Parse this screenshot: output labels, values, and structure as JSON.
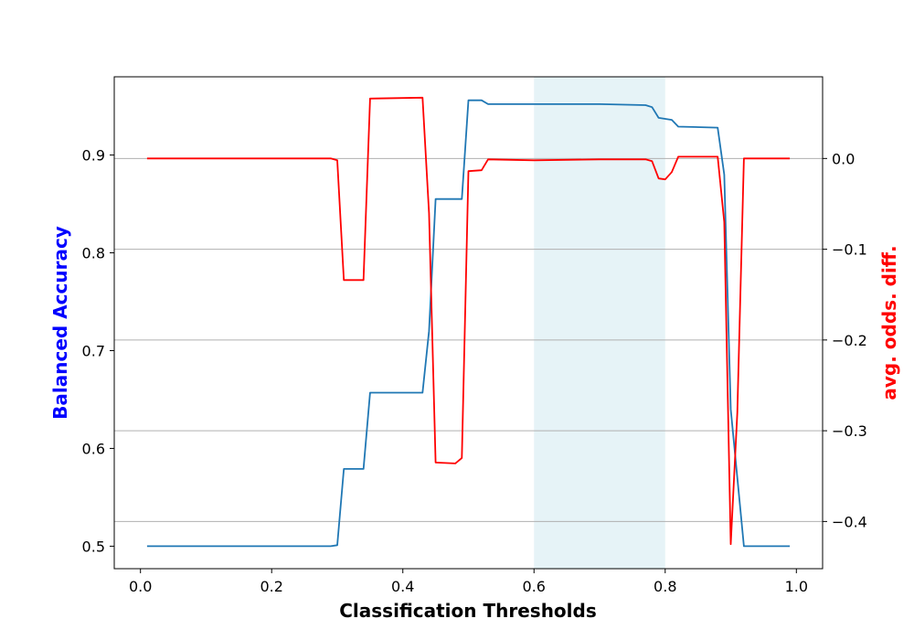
{
  "chart_data": {
    "type": "line",
    "xlabel": "Classification Thresholds",
    "ylabel_left": "Balanced Accuracy",
    "ylabel_right": "avg. odds. diff.",
    "xlim": [
      -0.04,
      1.04
    ],
    "ylim_left": [
      0.477,
      0.98
    ],
    "ylim_right": [
      -0.452,
      0.09
    ],
    "x_ticks": [
      0.0,
      0.2,
      0.4,
      0.6,
      0.8,
      1.0
    ],
    "x_tick_labels": [
      "0.0",
      "0.2",
      "0.4",
      "0.6",
      "0.8",
      "1.0"
    ],
    "y_left_ticks": [
      0.5,
      0.6,
      0.7,
      0.8,
      0.9
    ],
    "y_left_tick_labels": [
      "0.5",
      "0.6",
      "0.7",
      "0.8",
      "0.9"
    ],
    "y_right_ticks": [
      0.0,
      -0.1,
      -0.2,
      -0.3,
      -0.4
    ],
    "y_right_tick_labels": [
      "0.0",
      "−0.1",
      "−0.2",
      "−0.3",
      "−0.4"
    ],
    "grid": "horizontal on right axis",
    "highlight_x_range": [
      0.6,
      0.8
    ],
    "colors": {
      "balanced_accuracy": "#1f77b4",
      "avg_odds_diff": "#ff0000",
      "left_label": "#0000ff",
      "right_label": "#ff0000",
      "highlight": "#add8e6",
      "grid": "#b0b0b0"
    },
    "series": [
      {
        "axis": "left",
        "x": [
          0.01,
          0.29,
          0.3,
          0.31,
          0.34,
          0.35,
          0.43,
          0.44,
          0.45,
          0.48,
          0.49,
          0.5,
          0.52,
          0.53,
          0.6,
          0.7,
          0.77,
          0.78,
          0.79,
          0.81,
          0.82,
          0.88,
          0.89,
          0.9,
          0.91,
          0.92,
          0.99
        ],
        "y": [
          0.5,
          0.5,
          0.501,
          0.579,
          0.579,
          0.657,
          0.657,
          0.72,
          0.855,
          0.855,
          0.855,
          0.956,
          0.956,
          0.952,
          0.952,
          0.952,
          0.951,
          0.949,
          0.938,
          0.936,
          0.929,
          0.928,
          0.88,
          0.64,
          0.57,
          0.5,
          0.5
        ]
      },
      {
        "axis": "right",
        "x": [
          0.01,
          0.29,
          0.3,
          0.31,
          0.34,
          0.35,
          0.43,
          0.44,
          0.45,
          0.48,
          0.49,
          0.5,
          0.52,
          0.53,
          0.6,
          0.7,
          0.77,
          0.78,
          0.79,
          0.8,
          0.81,
          0.82,
          0.88,
          0.89,
          0.9,
          0.91,
          0.92,
          0.99
        ],
        "y": [
          0.0,
          0.0,
          -0.002,
          -0.134,
          -0.134,
          0.066,
          0.067,
          -0.06,
          -0.335,
          -0.336,
          -0.33,
          -0.014,
          -0.013,
          -0.001,
          -0.002,
          -0.001,
          -0.001,
          -0.003,
          -0.022,
          -0.023,
          -0.015,
          0.002,
          0.002,
          -0.07,
          -0.425,
          -0.28,
          0.0,
          0.0
        ]
      }
    ]
  }
}
